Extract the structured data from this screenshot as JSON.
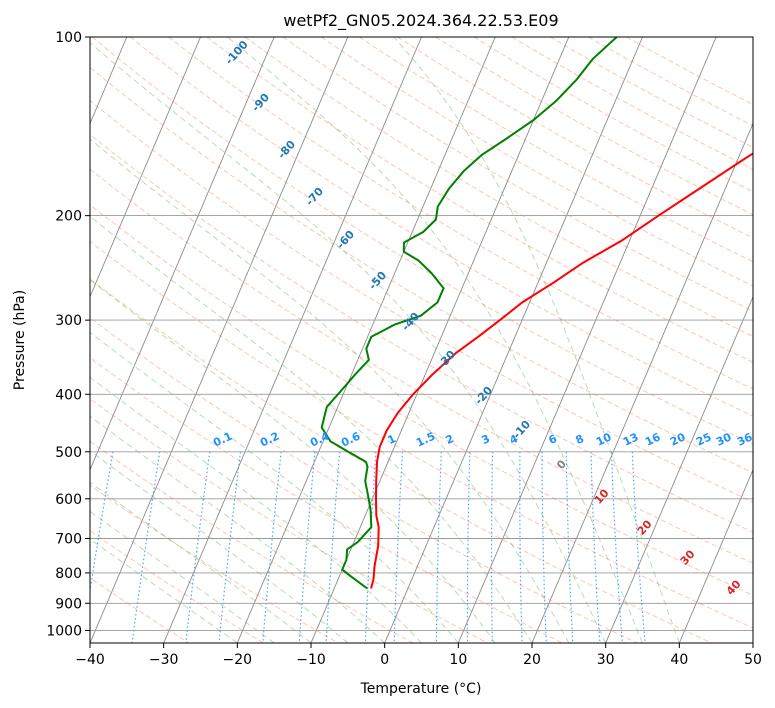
{
  "chart_data": {
    "type": "line",
    "title": "wetPf2_GN05.2024.364.22.53.E09",
    "xlabel": "Temperature (°C)",
    "ylabel": "Pressure (hPa)",
    "xlim": [
      -40,
      50
    ],
    "ylim": [
      1050,
      100
    ],
    "y_scale": "log",
    "x_ticks": [
      -40,
      -30,
      -20,
      -10,
      0,
      10,
      20,
      30,
      40,
      50
    ],
    "y_ticks": [
      100,
      200,
      300,
      400,
      500,
      600,
      700,
      800,
      900,
      1000
    ],
    "grid": true,
    "series": [
      {
        "role": "temperature",
        "color": "#ff0000",
        "points": [
          [
            -5,
            850
          ],
          [
            -5.2,
            820
          ],
          [
            -5.8,
            780
          ],
          [
            -6.5,
            720
          ],
          [
            -7.5,
            670
          ],
          [
            -8.5,
            640
          ],
          [
            -9.5,
            600
          ],
          [
            -10.5,
            560
          ],
          [
            -11.5,
            520
          ],
          [
            -12,
            490
          ],
          [
            -12,
            460
          ],
          [
            -11.5,
            430
          ],
          [
            -10.5,
            400
          ],
          [
            -9,
            370
          ],
          [
            -7,
            340
          ],
          [
            -5,
            320
          ],
          [
            -3,
            300
          ],
          [
            -1,
            280
          ],
          [
            2,
            260
          ],
          [
            5,
            240
          ],
          [
            9,
            220
          ],
          [
            12.5,
            200
          ],
          [
            16.5,
            180
          ],
          [
            21,
            160
          ],
          [
            25,
            145
          ],
          [
            28,
            135
          ],
          [
            32,
            125
          ],
          [
            35,
            117
          ],
          [
            38.5,
            110
          ],
          [
            41.5,
            105
          ],
          [
            45,
            100
          ]
        ]
      },
      {
        "role": "dewpoint",
        "color": "#008000",
        "points": [
          [
            -5.5,
            850
          ],
          [
            -8.5,
            810
          ],
          [
            -10,
            790
          ],
          [
            -10,
            760
          ],
          [
            -10.5,
            730
          ],
          [
            -9.5,
            710
          ],
          [
            -8.5,
            670
          ],
          [
            -9.5,
            630
          ],
          [
            -10.5,
            600
          ],
          [
            -12,
            560
          ],
          [
            -12.5,
            530
          ],
          [
            -13,
            520
          ],
          [
            -16,
            500
          ],
          [
            -19,
            480
          ],
          [
            -21,
            455
          ],
          [
            -21.5,
            420
          ],
          [
            -20.5,
            395
          ],
          [
            -19.5,
            370
          ],
          [
            -18.5,
            350
          ],
          [
            -19.5,
            335
          ],
          [
            -19.5,
            320
          ],
          [
            -17,
            305
          ],
          [
            -14,
            295
          ],
          [
            -12.5,
            280
          ],
          [
            -12.5,
            265
          ],
          [
            -15,
            250
          ],
          [
            -17.5,
            238
          ],
          [
            -20,
            230
          ],
          [
            -20.5,
            222
          ],
          [
            -18.5,
            213
          ],
          [
            -17.5,
            203
          ],
          [
            -18,
            193
          ],
          [
            -17.5,
            180
          ],
          [
            -16.5,
            168
          ],
          [
            -15,
            158
          ],
          [
            -12.5,
            148
          ],
          [
            -10,
            138
          ],
          [
            -8,
            128
          ],
          [
            -6.5,
            118
          ],
          [
            -5.5,
            109
          ],
          [
            -3.5,
            100
          ]
        ]
      }
    ],
    "dry_adiabat_labels": [
      "-100",
      "-90",
      "-80",
      "-70",
      "-60",
      "-50",
      "-40",
      "-30",
      "-20",
      "-10",
      "0",
      "10",
      "20",
      "30",
      "40"
    ],
    "dry_adiabat_label_color": "#1f77b4",
    "dry_adiabat_warm_color": "#d62728",
    "mixing_ratio_labels": [
      "0.1",
      "0.2",
      "0.4",
      "0.6",
      "1",
      "1.5",
      "2",
      "3",
      "4",
      "6",
      "8",
      "10",
      "13",
      "16",
      "20",
      "25",
      "30",
      "36"
    ],
    "mixing_ratio_label_color": "#1e90ff"
  }
}
